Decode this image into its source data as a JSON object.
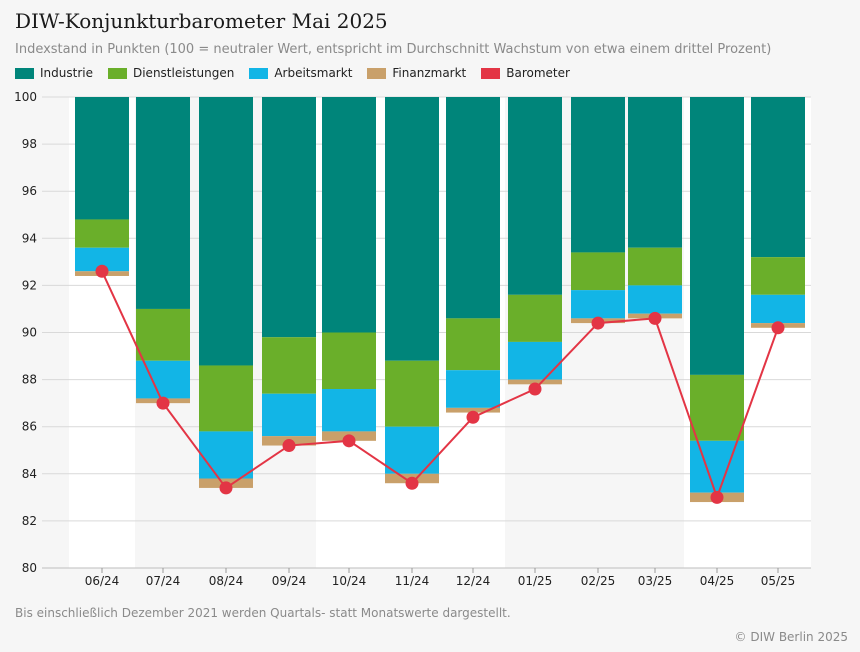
{
  "header": {
    "title": "DIW-Konjunkturbarometer Mai 2025",
    "subtitle": "Indexstand in Punkten (100 = neutraler Wert, entspricht im Durchschnitt Wachstum von etwa einem drittel Prozent)"
  },
  "legend": [
    {
      "label": "Industrie",
      "color": "#00857a"
    },
    {
      "label": "Dienstleistungen",
      "color": "#6aaf2a"
    },
    {
      "label": "Arbeitsmarkt",
      "color": "#12b5e6"
    },
    {
      "label": "Finanzmarkt",
      "color": "#c9a06a"
    },
    {
      "label": "Barometer",
      "color": "#e33545"
    }
  ],
  "chart_data": {
    "type": "bar",
    "title": "DIW-Konjunkturbarometer Mai 2025",
    "stacking": "downward from 100",
    "categories": [
      "06/24",
      "07/24",
      "08/24",
      "09/24",
      "10/24",
      "11/24",
      "12/24",
      "01/25",
      "02/25",
      "03/25",
      "04/25",
      "05/25"
    ],
    "series": [
      {
        "name": "Industrie",
        "boundaries_from_100": [
          94.8,
          91.0,
          88.6,
          89.8,
          90.0,
          88.8,
          90.6,
          91.6,
          93.4,
          93.6,
          88.2,
          93.2
        ]
      },
      {
        "name": "Dienstleistungen",
        "boundaries_from_100": [
          93.6,
          88.8,
          85.8,
          87.4,
          87.6,
          86.0,
          88.4,
          89.6,
          91.8,
          92.0,
          85.4,
          91.6
        ]
      },
      {
        "name": "Arbeitsmarkt",
        "boundaries_from_100": [
          92.6,
          87.2,
          83.8,
          85.6,
          85.8,
          84.0,
          86.8,
          88.0,
          90.6,
          90.8,
          83.2,
          90.4
        ]
      },
      {
        "name": "Finanzmarkt",
        "boundaries_from_100": [
          92.4,
          87.0,
          83.4,
          85.2,
          85.4,
          83.6,
          86.6,
          87.8,
          90.4,
          90.6,
          82.8,
          90.2
        ]
      }
    ],
    "barometer": {
      "name": "Barometer",
      "values": [
        92.6,
        87.0,
        83.4,
        85.2,
        85.4,
        83.6,
        86.4,
        87.6,
        90.4,
        90.6,
        83.0,
        90.2
      ]
    },
    "ylim": [
      80,
      100
    ],
    "yticks": [
      80,
      82,
      84,
      86,
      88,
      90,
      92,
      94,
      96,
      98,
      100
    ],
    "grid": true,
    "legend_position": "top-left"
  },
  "footer": {
    "note": "Bis einschließlich Dezember 2021 werden Quartals- statt Monatswerte dargestellt.",
    "credit": "© DIW Berlin 2025"
  }
}
